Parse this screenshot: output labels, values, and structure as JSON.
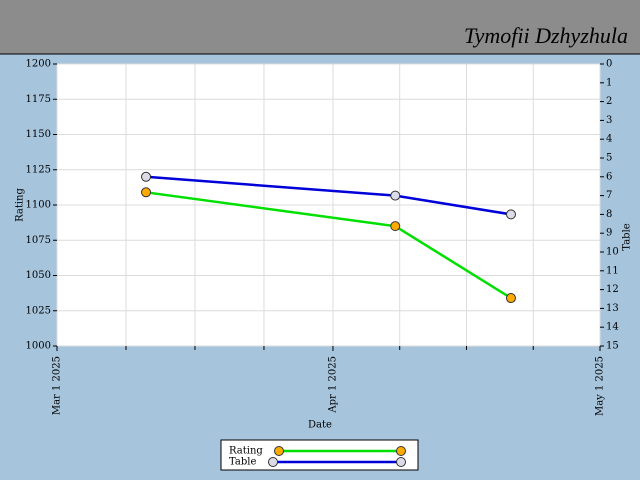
{
  "chart_data": {
    "type": "line",
    "title": "Tymofii Dzhyzhula",
    "x_label": "Date",
    "y_label": "Rating",
    "y2_label": "Table",
    "x": [
      "2025-03-11",
      "2025-04-08",
      "2025-04-21"
    ],
    "xlim": [
      "2025-03-01",
      "2025-05-01"
    ],
    "xticks": [
      {
        "value": "2025-03-01",
        "label": "Mar 1 2025"
      },
      {
        "value": "2025-04-01",
        "label": "Apr 1 2025"
      },
      {
        "value": "2025-05-01",
        "label": "May 1 2025"
      }
    ],
    "ylim": [
      1000,
      1200
    ],
    "yticks": [
      1000,
      1025,
      1050,
      1075,
      1100,
      1125,
      1150,
      1175,
      1200
    ],
    "y2lim": [
      15,
      0
    ],
    "y2ticks": [
      0,
      1,
      2,
      3,
      4,
      5,
      6,
      7,
      8,
      9,
      10,
      11,
      12,
      13,
      14,
      15
    ],
    "grid": true,
    "series": [
      {
        "name": "Rating",
        "color": "#00e000",
        "marker_color": "#ffaa00",
        "values": [
          1109,
          1085,
          1034
        ]
      },
      {
        "name": "Table",
        "color": "#0000d8",
        "marker_color": "#dcdce8",
        "axis": "y2",
        "values": [
          6,
          7,
          8
        ]
      }
    ]
  }
}
